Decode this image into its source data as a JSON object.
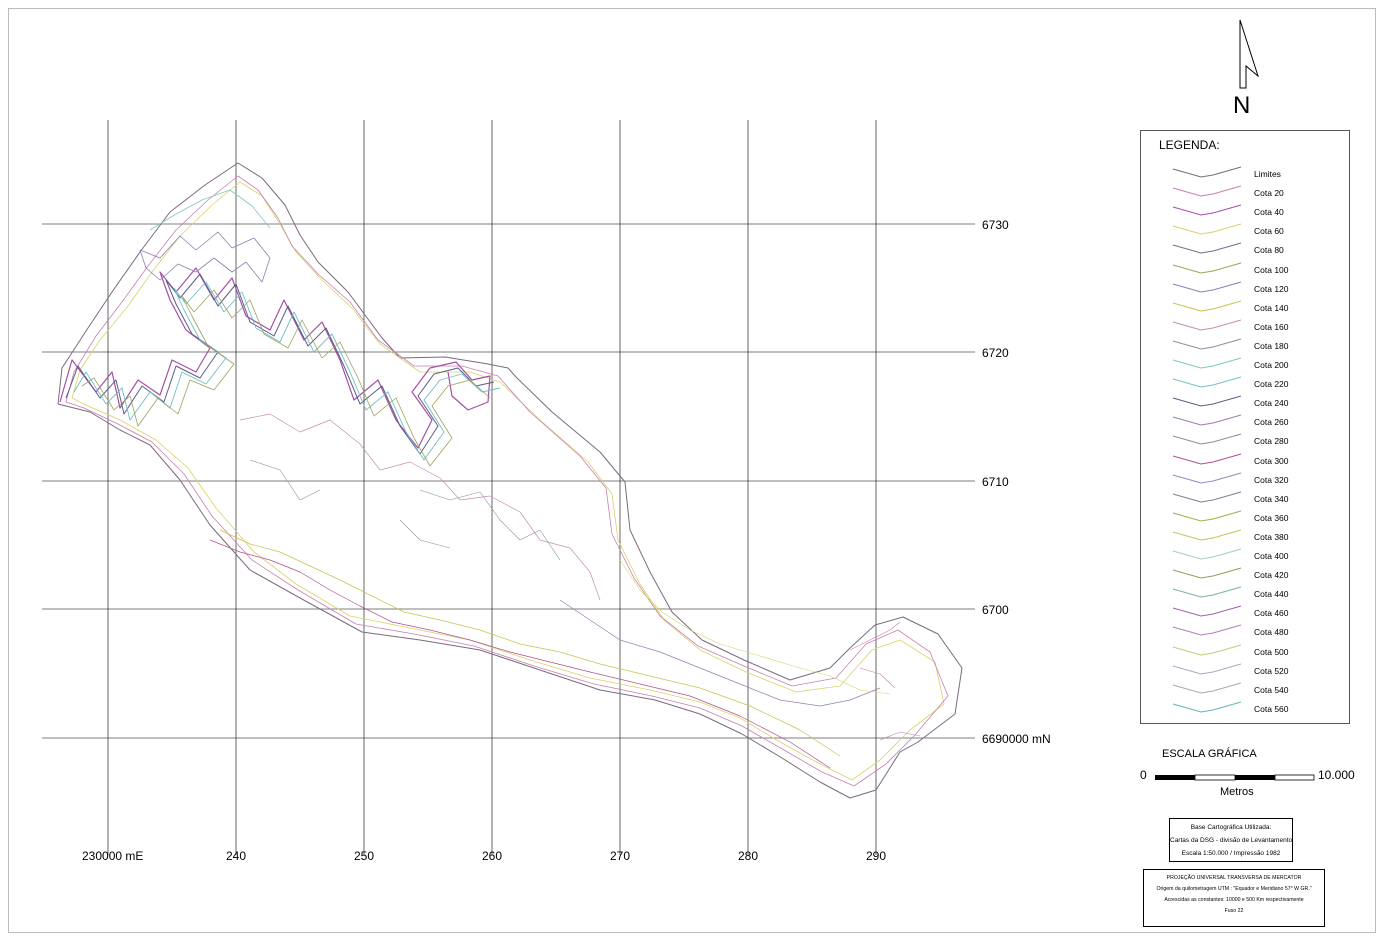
{
  "map": {
    "north_label": "N",
    "easting_labels": [
      "230000 mE",
      "240",
      "250",
      "260",
      "270",
      "280",
      "290"
    ],
    "northing_labels": [
      "6730",
      "6720",
      "6710",
      "6700",
      "6690000 mN"
    ]
  },
  "legend": {
    "title": "LEGENDA:",
    "items": [
      {
        "label": "Limites",
        "color": "#7a6a80"
      },
      {
        "label": "Cota 20",
        "color": "#c97fb0"
      },
      {
        "label": "Cota 40",
        "color": "#a64fa6"
      },
      {
        "label": "Cota 60",
        "color": "#d8d26a"
      },
      {
        "label": "Cota 80",
        "color": "#7b6a8c"
      },
      {
        "label": "Cota 100",
        "color": "#9aa35a"
      },
      {
        "label": "Cota 120",
        "color": "#8a7fb5"
      },
      {
        "label": "Cota 140",
        "color": "#c8c24a"
      },
      {
        "label": "Cota 160",
        "color": "#c48fb6"
      },
      {
        "label": "Cota 180",
        "color": "#8e8ea0"
      },
      {
        "label": "Cota 200",
        "color": "#7fc9b7"
      },
      {
        "label": "Cota 220",
        "color": "#6ec0c6"
      },
      {
        "label": "Cota 240",
        "color": "#5c5c8a"
      },
      {
        "label": "Cota 260",
        "color": "#9c7cb0"
      },
      {
        "label": "Cota 280",
        "color": "#8f8f8f"
      },
      {
        "label": "Cota 300",
        "color": "#b04f8f"
      },
      {
        "label": "Cota 320",
        "color": "#9a86c0"
      },
      {
        "label": "Cota 340",
        "color": "#7e7e9e"
      },
      {
        "label": "Cota 360",
        "color": "#9fb04a"
      },
      {
        "label": "Cota 380",
        "color": "#c9c25a"
      },
      {
        "label": "Cota 400",
        "color": "#9ed0c8"
      },
      {
        "label": "Cota 420",
        "color": "#8fa060"
      },
      {
        "label": "Cota 440",
        "color": "#7fb0a0"
      },
      {
        "label": "Cota 460",
        "color": "#a060a8"
      },
      {
        "label": "Cota 480",
        "color": "#b07fb8"
      },
      {
        "label": "Cota 500",
        "color": "#c8c87a"
      },
      {
        "label": "Cota 520",
        "color": "#a8a8c8"
      },
      {
        "label": "Cota 540",
        "color": "#9fb0a8"
      },
      {
        "label": "Cota 560",
        "color": "#60b8b8"
      }
    ]
  },
  "scale": {
    "title": "ESCALA GRÁFICA",
    "start": "0",
    "end": "10.000",
    "unit": "Metros"
  },
  "base_info": {
    "lines": [
      "Base Cartográfica Utilizada:",
      "Cartas da DSG - divisão de Levantamento",
      "Escala 1:50.000 / Impressão 1982"
    ]
  },
  "projection_info": {
    "lines": [
      "PROJEÇÃO UNIVERSAL TRANSVERSA DE MERCATOR",
      "Origem da quilometragem UTM : \"Equador e Meridiano 57° W GR.\"",
      "Acrescidas as constantes: 10000 e 500 Km respectivamente",
      "Fuso 22"
    ]
  }
}
